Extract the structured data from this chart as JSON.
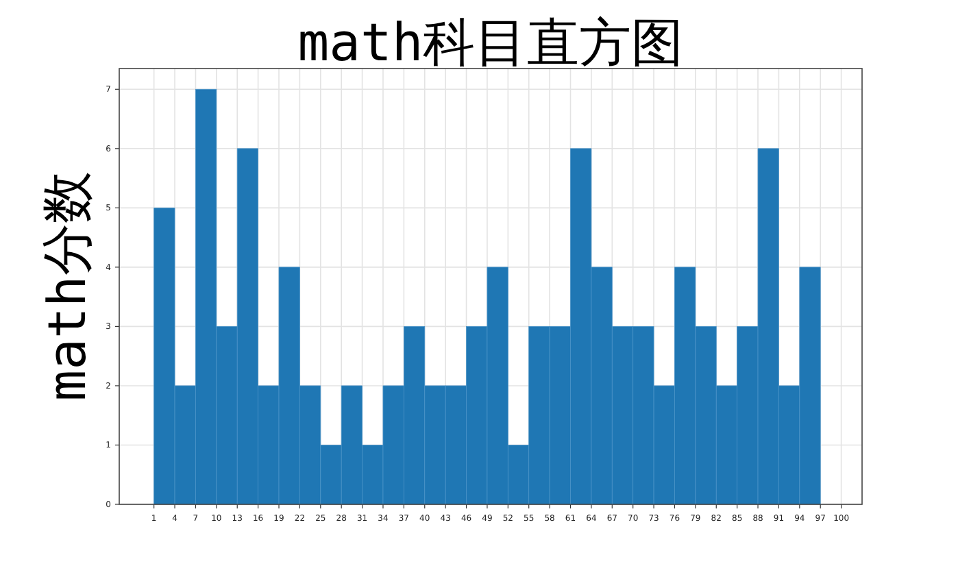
{
  "chart_data": {
    "type": "histogram",
    "title": "math科目直方图",
    "ylabel": "math分数",
    "bins": [
      1,
      4,
      7,
      10,
      13,
      16,
      19,
      22,
      25,
      28,
      31,
      34,
      37,
      40,
      43,
      46,
      49,
      52,
      55,
      58,
      61,
      64,
      67,
      70,
      73,
      76,
      79,
      82,
      85,
      88,
      91,
      94,
      97
    ],
    "values": [
      5,
      2,
      7,
      3,
      6,
      2,
      4,
      2,
      1,
      2,
      1,
      2,
      3,
      2,
      2,
      3,
      4,
      1,
      3,
      3,
      6,
      4,
      3,
      3,
      2,
      4,
      3,
      2,
      3,
      6,
      2,
      4
    ],
    "color": "#1f77b4",
    "xlim": [
      -4,
      103
    ],
    "ylim": [
      0,
      7.35
    ],
    "xticks": [
      1,
      4,
      7,
      10,
      13,
      16,
      19,
      22,
      25,
      28,
      31,
      34,
      37,
      40,
      43,
      46,
      49,
      52,
      55,
      58,
      61,
      64,
      67,
      70,
      73,
      76,
      79,
      82,
      85,
      88,
      91,
      94,
      97,
      100
    ],
    "yticks": [
      0,
      1,
      2,
      3,
      4,
      5,
      6,
      7
    ],
    "grid": true
  }
}
